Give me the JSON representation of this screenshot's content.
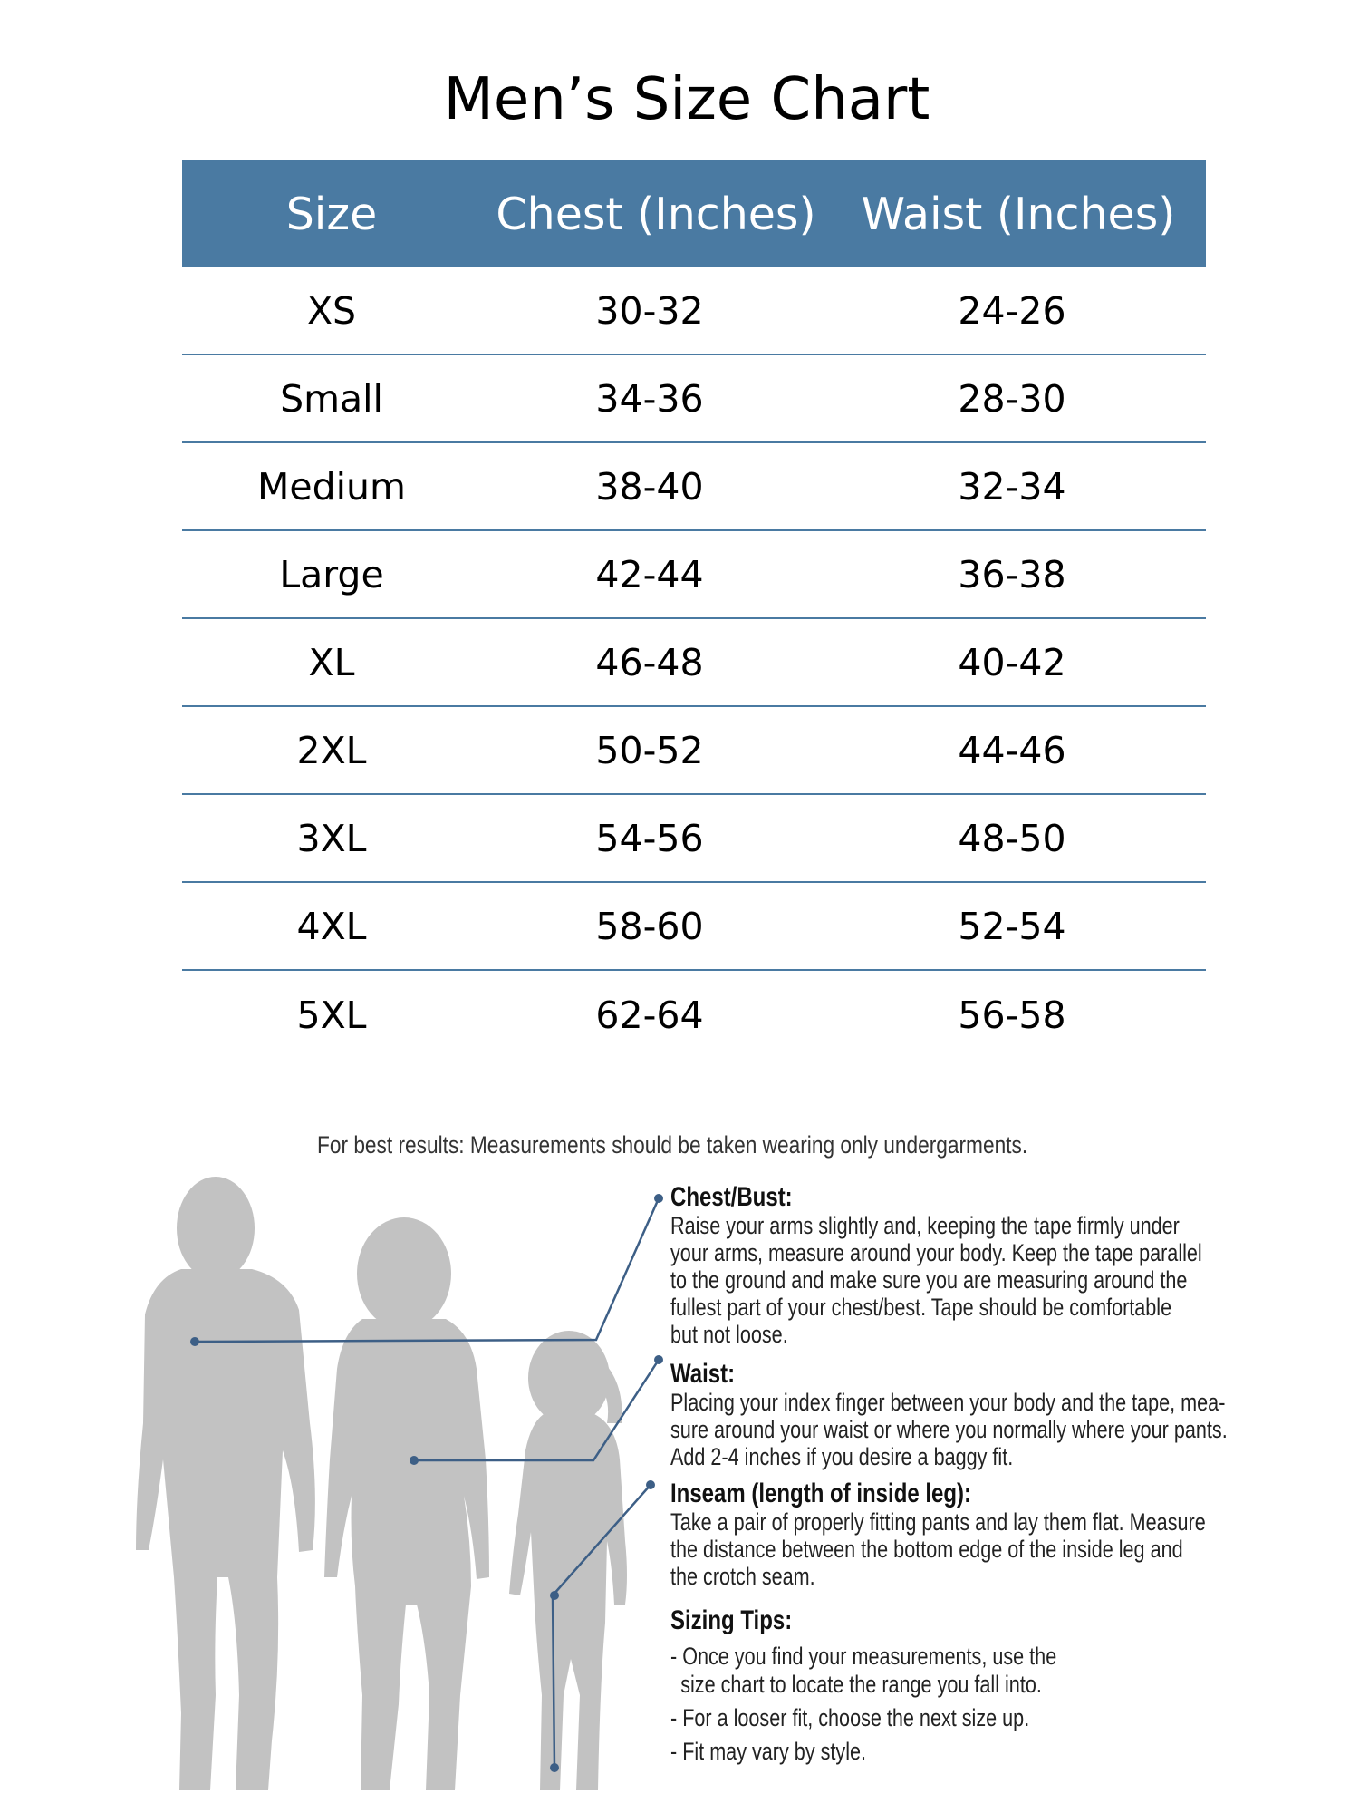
{
  "title": "Men’s Size Chart",
  "table": {
    "headers": [
      "Size",
      "Chest (Inches)",
      "Waist (Inches)"
    ],
    "rows": [
      [
        "XS",
        "30-32",
        "24-26"
      ],
      [
        "Small",
        "34-36",
        "28-30"
      ],
      [
        "Medium",
        "38-40",
        "32-34"
      ],
      [
        "Large",
        "42-44",
        "36-38"
      ],
      [
        "XL",
        "46-48",
        "40-42"
      ],
      [
        "2XL",
        "50-52",
        "44-46"
      ],
      [
        "3XL",
        "54-56",
        "48-50"
      ],
      [
        "4XL",
        "58-60",
        "52-54"
      ],
      [
        "5XL",
        "62-64",
        "56-58"
      ]
    ]
  },
  "note": "For best results: Measurements should be taken wearing only undergarments.",
  "sections": {
    "chest": {
      "heading": "Chest/Bust:",
      "lines": [
        "Raise your arms slightly and, keeping the tape firmly under",
        "your arms, measure around your body. Keep the tape parallel",
        "to the ground and make sure you are measuring around the",
        "fullest part of your chest/best. Tape should be comfortable",
        "but not loose."
      ]
    },
    "waist": {
      "heading": "Waist:",
      "lines": [
        "Placing your index finger between your body and the tape, mea-",
        "sure around your waist or where you normally where your pants.",
        "Add 2-4 inches if you desire a baggy fit."
      ]
    },
    "inseam": {
      "heading": "Inseam (length of inside leg):",
      "lines": [
        "Take a pair of properly fitting pants and lay them flat. Measure",
        "the distance between the bottom edge of the inside leg and",
        "the crotch seam."
      ]
    },
    "tips": {
      "heading": "Sizing Tips:",
      "items": [
        "- Once you find your measurements, use the size chart to locate the range you fall into.",
        "- For a looser fit, choose the next size up.",
        "- Fit may vary by style."
      ]
    }
  },
  "colors": {
    "header_bg": "#4a7aa2",
    "divider": "#4a7aa2",
    "silhouette": "#c2c2c2",
    "guide_line": "#3d5f86"
  }
}
